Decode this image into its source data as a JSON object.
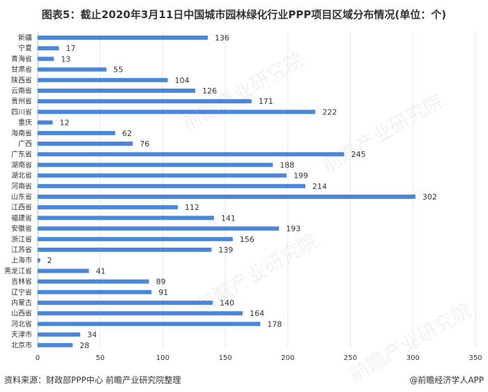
{
  "title": "图表5：截止2020年3月11日中国城市园林绿化行业PPP项目区域分布情况(单位：个)",
  "source": "资料来源：财政部PPP中心 前瞻产业研究院整理",
  "credit": "@前瞻经济学人APP",
  "watermark": "前瞻产业研究院",
  "colors": {
    "bar": "#4a86d9",
    "grid": "#e6e6e6",
    "text": "#333333"
  },
  "chart_data": {
    "type": "bar",
    "orientation": "horizontal",
    "title": "图表5：截止2020年3月11日中国城市园林绿化行业PPP项目区域分布情况(单位：个)",
    "xlim": [
      0,
      350
    ],
    "xticks": [
      0,
      50,
      100,
      150,
      200,
      250,
      300,
      350
    ],
    "grid": true,
    "categories": [
      "新疆",
      "宁夏",
      "青海省",
      "甘肃省",
      "陕西省",
      "云南省",
      "贵州省",
      "四川省",
      "重庆",
      "海南省",
      "广西",
      "广东省",
      "湖南省",
      "湖北省",
      "河南省",
      "山东省",
      "江西省",
      "福建省",
      "安徽省",
      "浙江省",
      "江苏省",
      "上海市",
      "黑龙江省",
      "吉林省",
      "辽宁省",
      "内蒙古",
      "山西省",
      "河北省",
      "天津市",
      "北京市"
    ],
    "values": [
      136,
      17,
      13,
      55,
      104,
      126,
      171,
      222,
      12,
      62,
      76,
      245,
      188,
      199,
      214,
      302,
      112,
      141,
      193,
      156,
      139,
      2,
      41,
      89,
      91,
      140,
      164,
      178,
      34,
      28
    ]
  }
}
